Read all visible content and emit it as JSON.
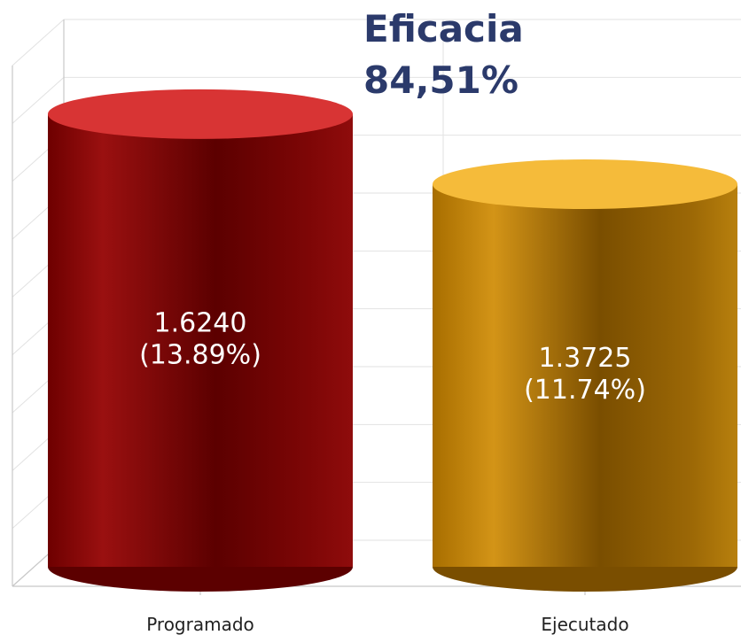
{
  "chart_data": {
    "type": "bar",
    "title": "Eficacia",
    "subtitle": "84,51%",
    "categories": [
      "Programado",
      "Ejecutado"
    ],
    "values": [
      1.624,
      1.3725
    ],
    "value_labels": [
      "1.6240",
      "1.3725"
    ],
    "percent_labels": [
      "(13.89%)",
      "(11.74%)"
    ],
    "xlabel": "",
    "ylabel": "",
    "ylim": [
      0,
      1.9
    ],
    "grid": true,
    "colors": {
      "programado_body": "#8a0a0a",
      "programado_dark": "#5c0000",
      "programado_top": "#d83434",
      "ejecutado_body": "#b57a10",
      "ejecutado_dark": "#7a4e00",
      "ejecutado_top": "#f5bb3a",
      "title": "#2b3a6b",
      "grid": "#e2e2e2",
      "axis": "#c8c8c8"
    }
  }
}
